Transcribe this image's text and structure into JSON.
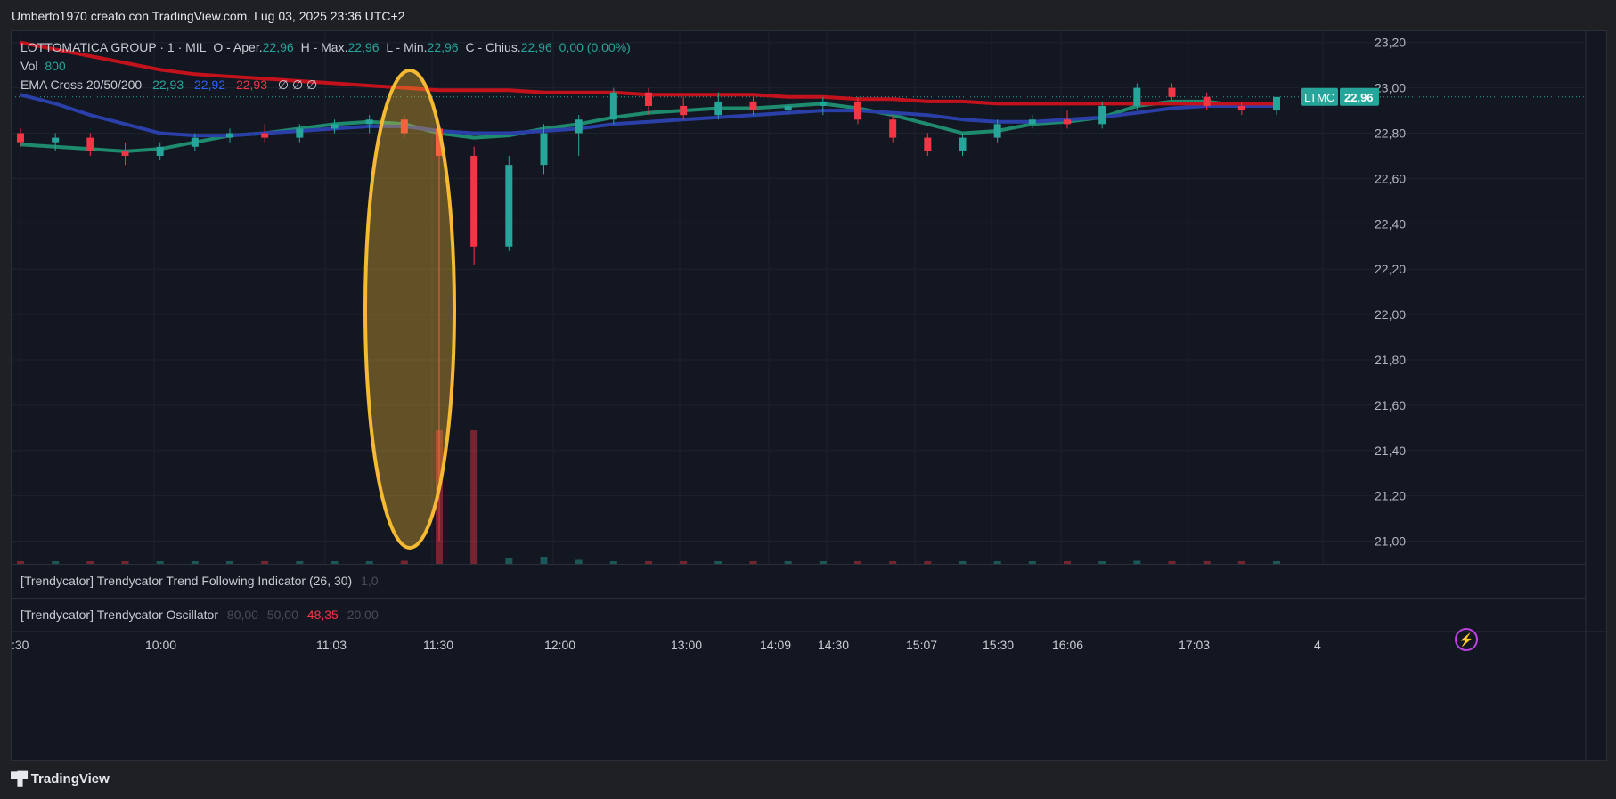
{
  "header": {
    "attribution": "Umberto1970 creato con TradingView.com, Lug 03, 2025 23:36 UTC+2"
  },
  "legend": {
    "symbol": "LOTTOMATICA GROUP · 1 · MIL",
    "open_label": "O - Aper.",
    "open": "22,96",
    "high_label": "H - Max.",
    "high": "22,96",
    "low_label": "L - Min.",
    "low": "22,96",
    "close_label": "C - Chius.",
    "close": "22,96",
    "change": "0,00 (0,00%)",
    "vol_label": "Vol",
    "vol": "800",
    "ema_label": "EMA Cross 20/50/200",
    "ema20": "22,93",
    "ema50": "22,92",
    "ema200": "22,93",
    "ema_extra": "∅ ∅ ∅"
  },
  "panes": {
    "trend": {
      "label": "[Trendycator] Trendycator Trend Following Indicator (26, 30)",
      "value": "1,0"
    },
    "osc": {
      "label": "[Trendycator] Trendycator Oscillator",
      "v80": "80,00",
      "v50": "50,00",
      "value": "48,35",
      "v20": "20,00"
    }
  },
  "price_tag": {
    "symbol": "LTMC",
    "price": "22,96"
  },
  "footer": {
    "brand": "TradingView",
    "logo_icon": "tradingview-logo-icon"
  },
  "colors": {
    "up": "#26a69a",
    "down": "#f23645",
    "ema20": "#1e8a6e",
    "ema50": "#2a3fa8",
    "ema200": "#c4121c",
    "highlight": "#f5b932"
  },
  "chart_data": {
    "type": "candlestick",
    "symbol": "LTMC",
    "interval": "1",
    "y_ticks": [
      "23,20",
      "23,00",
      "22,80",
      "22,60",
      "22,40",
      "22,20",
      "22,00",
      "21,80",
      "21,60",
      "21,40",
      "21,20",
      "21,00"
    ],
    "ylim": [
      20.9,
      23.25
    ],
    "x_ticks": [
      ":30",
      "10:00",
      "11:03",
      "11:30",
      "12:00",
      "13:00",
      "14:09",
      "14:30",
      "15:07",
      "15:30",
      "16:06",
      "17:03",
      "4"
    ],
    "grid": true,
    "last_price": 22.96,
    "highlight": "spike low around 11:25–11:30",
    "candles": [
      {
        "t": "09:30",
        "o": 22.8,
        "h": 22.82,
        "l": 22.74,
        "c": 22.76
      },
      {
        "t": "09:45",
        "o": 22.76,
        "h": 22.8,
        "l": 22.72,
        "c": 22.78
      },
      {
        "t": "09:55",
        "o": 22.78,
        "h": 22.8,
        "l": 22.7,
        "c": 22.72
      },
      {
        "t": "10:00",
        "o": 22.72,
        "h": 22.76,
        "l": 22.66,
        "c": 22.7
      },
      {
        "t": "10:10",
        "o": 22.7,
        "h": 22.76,
        "l": 22.68,
        "c": 22.74
      },
      {
        "t": "10:20",
        "o": 22.74,
        "h": 22.8,
        "l": 22.72,
        "c": 22.78
      },
      {
        "t": "10:30",
        "o": 22.78,
        "h": 22.82,
        "l": 22.76,
        "c": 22.8
      },
      {
        "t": "10:40",
        "o": 22.8,
        "h": 22.84,
        "l": 22.76,
        "c": 22.78
      },
      {
        "t": "10:50",
        "o": 22.78,
        "h": 22.84,
        "l": 22.76,
        "c": 22.82
      },
      {
        "t": "11:03",
        "o": 22.82,
        "h": 22.86,
        "l": 22.8,
        "c": 22.84
      },
      {
        "t": "11:10",
        "o": 22.84,
        "h": 22.88,
        "l": 22.8,
        "c": 22.86
      },
      {
        "t": "11:18",
        "o": 22.86,
        "h": 22.88,
        "l": 22.78,
        "c": 22.8
      },
      {
        "t": "11:24",
        "o": 22.82,
        "h": 22.84,
        "l": 21.0,
        "c": 22.7
      },
      {
        "t": "11:26",
        "o": 22.7,
        "h": 22.74,
        "l": 22.22,
        "c": 22.3
      },
      {
        "t": "11:28",
        "o": 22.3,
        "h": 22.7,
        "l": 22.28,
        "c": 22.66
      },
      {
        "t": "11:30",
        "o": 22.66,
        "h": 22.84,
        "l": 22.62,
        "c": 22.8
      },
      {
        "t": "11:35",
        "o": 22.8,
        "h": 22.88,
        "l": 22.7,
        "c": 22.86
      },
      {
        "t": "11:40",
        "o": 22.86,
        "h": 23.0,
        "l": 22.84,
        "c": 22.98
      },
      {
        "t": "11:50",
        "o": 22.98,
        "h": 23.0,
        "l": 22.88,
        "c": 22.92
      },
      {
        "t": "12:00",
        "o": 22.92,
        "h": 22.96,
        "l": 22.86,
        "c": 22.88
      },
      {
        "t": "12:30",
        "o": 22.88,
        "h": 22.98,
        "l": 22.86,
        "c": 22.94
      },
      {
        "t": "13:00",
        "o": 22.94,
        "h": 22.96,
        "l": 22.88,
        "c": 22.9
      },
      {
        "t": "13:30",
        "o": 22.9,
        "h": 22.94,
        "l": 22.88,
        "c": 22.92
      },
      {
        "t": "14:09",
        "o": 22.92,
        "h": 22.96,
        "l": 22.88,
        "c": 22.94
      },
      {
        "t": "14:30",
        "o": 22.94,
        "h": 22.96,
        "l": 22.84,
        "c": 22.86
      },
      {
        "t": "14:45",
        "o": 22.86,
        "h": 22.88,
        "l": 22.76,
        "c": 22.78
      },
      {
        "t": "15:00",
        "o": 22.78,
        "h": 22.8,
        "l": 22.7,
        "c": 22.72
      },
      {
        "t": "15:07",
        "o": 22.72,
        "h": 22.8,
        "l": 22.7,
        "c": 22.78
      },
      {
        "t": "15:20",
        "o": 22.78,
        "h": 22.86,
        "l": 22.76,
        "c": 22.84
      },
      {
        "t": "15:30",
        "o": 22.84,
        "h": 22.88,
        "l": 22.82,
        "c": 22.86
      },
      {
        "t": "15:50",
        "o": 22.86,
        "h": 22.9,
        "l": 22.82,
        "c": 22.84
      },
      {
        "t": "16:06",
        "o": 22.84,
        "h": 22.94,
        "l": 22.82,
        "c": 22.92
      },
      {
        "t": "16:30",
        "o": 22.92,
        "h": 23.02,
        "l": 22.9,
        "c": 23.0
      },
      {
        "t": "16:45",
        "o": 23.0,
        "h": 23.02,
        "l": 22.94,
        "c": 22.96
      },
      {
        "t": "17:03",
        "o": 22.96,
        "h": 22.98,
        "l": 22.9,
        "c": 22.92
      },
      {
        "t": "17:20",
        "o": 22.92,
        "h": 22.94,
        "l": 22.88,
        "c": 22.9
      },
      {
        "t": "17:30",
        "o": 22.9,
        "h": 22.96,
        "l": 22.88,
        "c": 22.96
      }
    ],
    "series": [
      {
        "name": "EMA 20",
        "values": [
          22.75,
          22.74,
          22.73,
          22.72,
          22.73,
          22.76,
          22.79,
          22.8,
          22.82,
          22.84,
          22.85,
          22.84,
          22.8,
          22.78,
          22.79,
          22.82,
          22.84,
          22.87,
          22.89,
          22.9,
          22.91,
          22.91,
          22.92,
          22.93,
          22.91,
          22.88,
          22.84,
          22.8,
          22.81,
          22.84,
          22.85,
          22.87,
          22.92,
          22.94,
          22.94,
          22.92,
          22.93
        ]
      },
      {
        "name": "EMA 50",
        "values": [
          22.97,
          22.93,
          22.88,
          22.84,
          22.8,
          22.79,
          22.79,
          22.8,
          22.81,
          22.82,
          22.83,
          22.83,
          22.81,
          22.8,
          22.8,
          22.81,
          22.82,
          22.84,
          22.85,
          22.86,
          22.87,
          22.88,
          22.89,
          22.9,
          22.9,
          22.89,
          22.88,
          22.86,
          22.85,
          22.85,
          22.86,
          22.87,
          22.89,
          22.91,
          22.92,
          22.92,
          22.92
        ]
      },
      {
        "name": "EMA 200",
        "values": [
          23.2,
          23.17,
          23.14,
          23.11,
          23.08,
          23.06,
          23.05,
          23.04,
          23.03,
          23.02,
          23.01,
          23.0,
          22.99,
          22.99,
          22.99,
          22.98,
          22.98,
          22.98,
          22.97,
          22.97,
          22.97,
          22.97,
          22.96,
          22.96,
          22.95,
          22.95,
          22.94,
          22.94,
          22.93,
          22.93,
          22.93,
          22.93,
          22.93,
          22.93,
          22.93,
          22.93,
          22.93
        ]
      }
    ],
    "volume": [
      40,
      30,
      45,
      60,
      50,
      30,
      40,
      35,
      55,
      60,
      50,
      70,
      3000,
      3000,
      120,
      160,
      90,
      60,
      50,
      40,
      45,
      40,
      35,
      50,
      45,
      40,
      35,
      50,
      40,
      45,
      40,
      60,
      70,
      50,
      45,
      40,
      55
    ]
  }
}
